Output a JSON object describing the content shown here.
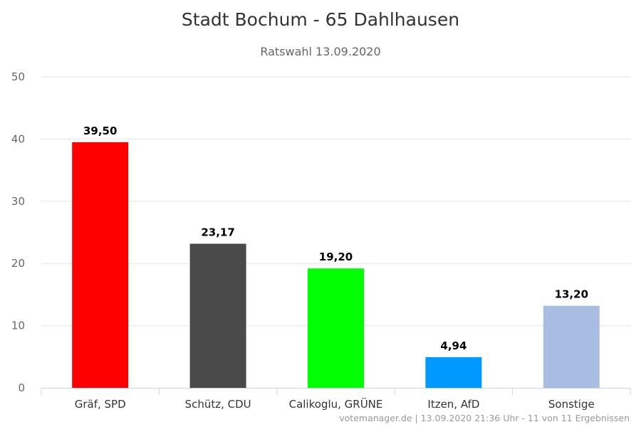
{
  "chart_data": {
    "type": "bar",
    "title": "Stadt Bochum - 65 Dahlhausen",
    "subtitle": "Ratswahl 13.09.2020",
    "categories": [
      "Gräf, SPD",
      "Schütz, CDU",
      "Calikoglu, GRÜNE",
      "Itzen, AfD",
      "Sonstige"
    ],
    "values": [
      39.5,
      23.17,
      19.2,
      4.94,
      13.2
    ],
    "value_labels": [
      "39,50",
      "23,17",
      "19,20",
      "4,94",
      "13,20"
    ],
    "colors": [
      "#ff0000",
      "#4a4a4a",
      "#00ff00",
      "#0099ff",
      "#a9bde3"
    ],
    "ylim": [
      0,
      50
    ],
    "yticks": [
      0,
      10,
      20,
      30,
      40,
      50
    ],
    "ytick_labels": [
      "0",
      "10",
      "20",
      "30",
      "40",
      "50"
    ],
    "grid": true,
    "legend": "none",
    "xlabel": "",
    "ylabel": ""
  },
  "credits": "votemanager.de | 13.09.2020 21:36 Uhr - 11 von 11 Ergebnissen"
}
